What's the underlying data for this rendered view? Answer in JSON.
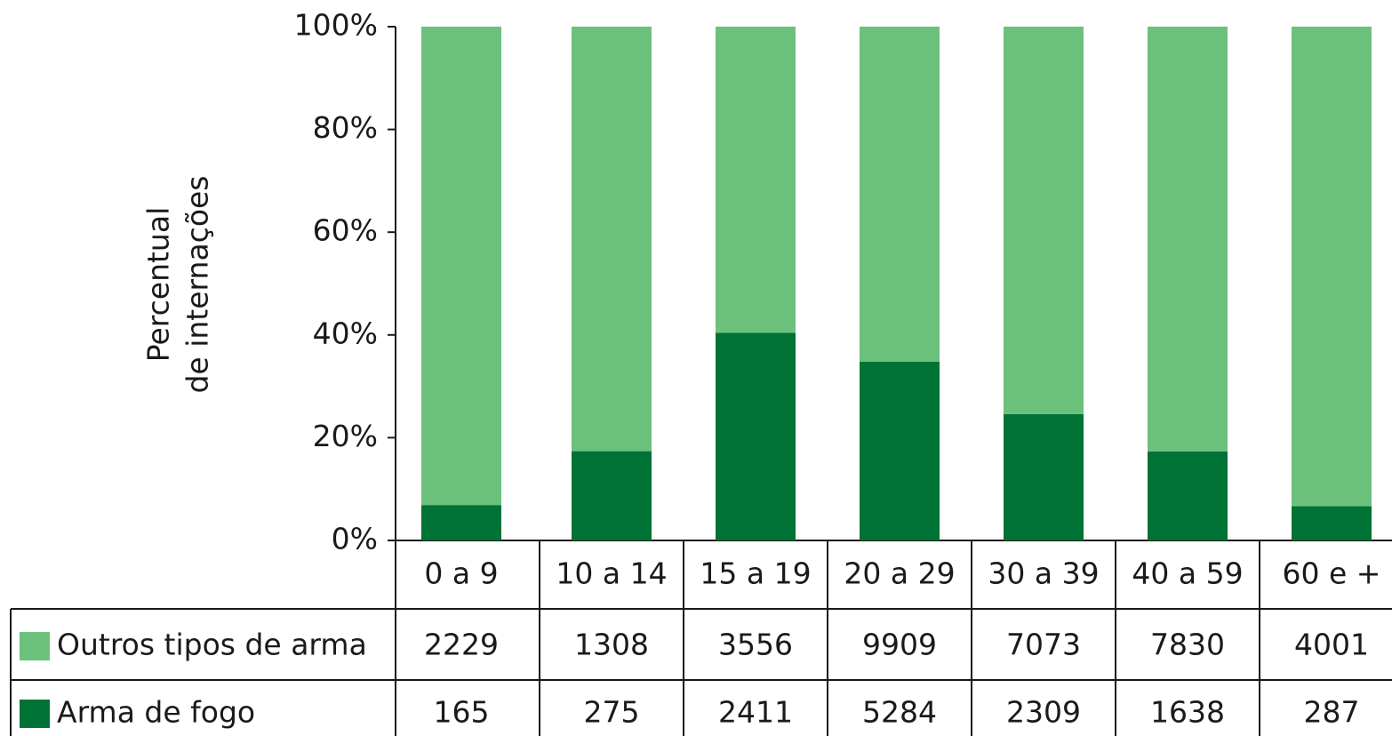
{
  "chart_data": {
    "type": "bar",
    "stacked": "percent",
    "ylabel": [
      "Percentual",
      "de internações"
    ],
    "categories": [
      "0 a 9",
      "10 a 14",
      "15 a 19",
      "20 a 29",
      "30 a 39",
      "40 a 59",
      "60 e +"
    ],
    "series": [
      {
        "name": "Outros tipos de arma",
        "color": "#6cc17d",
        "values": [
          2229,
          1308,
          3556,
          9909,
          7073,
          7830,
          4001
        ]
      },
      {
        "name": "Arma de fogo",
        "color": "#007236",
        "values": [
          165,
          275,
          2411,
          5284,
          2309,
          1638,
          287
        ]
      }
    ],
    "ylim": [
      0,
      100
    ],
    "yticks": [
      {
        "value": 0,
        "label": "0%"
      },
      {
        "value": 20,
        "label": "20%"
      },
      {
        "value": 40,
        "label": "40%"
      },
      {
        "value": 60,
        "label": "60%"
      },
      {
        "value": 80,
        "label": "80%"
      },
      {
        "value": 100,
        "label": "100%"
      }
    ]
  }
}
